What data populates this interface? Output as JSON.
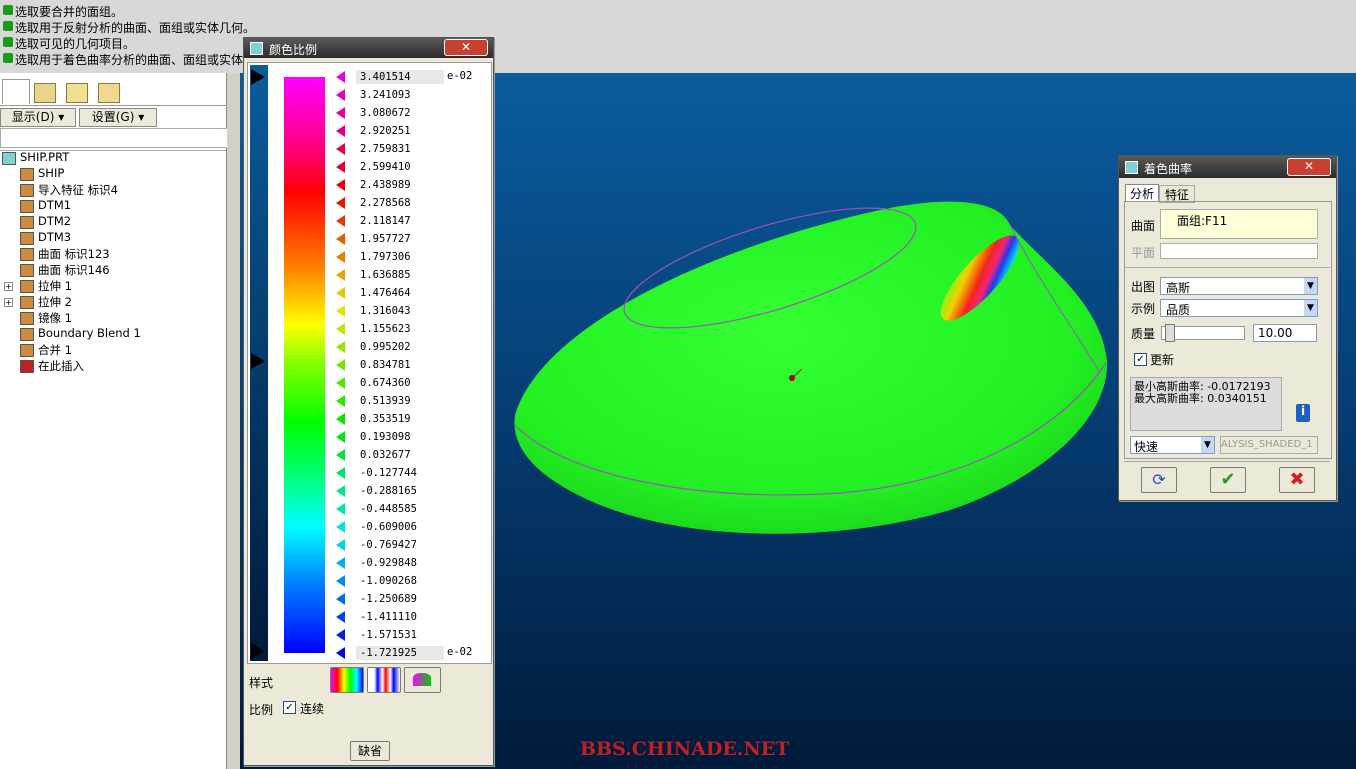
{
  "messages": [
    "选取要合并的面组。",
    "选取用于反射分析的曲面、面组或实体几何。",
    "选取可见的几何项目。",
    "选取用于着色曲率分析的曲面、面组或实体几何。"
  ],
  "model_tree": {
    "buttons": [
      "显示(D)",
      "设置(G)"
    ],
    "items": [
      "SHIP.PRT",
      "SHIP",
      "导入特征 标识4",
      "DTM1",
      "DTM2",
      "DTM3",
      "曲面 标识123",
      "曲面 标识146",
      "拉伸 1",
      "拉伸 2",
      "镜像 1",
      "Boundary Blend 1",
      "合并 1",
      "在此插入"
    ]
  },
  "color_scale_dialog": {
    "title": "颜色比例",
    "values": [
      "3.401514",
      "3.241093",
      "3.080672",
      "2.920251",
      "2.759831",
      "2.599410",
      "2.438989",
      "2.278568",
      "2.118147",
      "1.957727",
      "1.797306",
      "1.636885",
      "1.476464",
      "1.316043",
      "1.155623",
      "0.995202",
      "0.834781",
      "0.674360",
      "0.513939",
      "0.353519",
      "0.193098",
      "0.032677",
      "-0.127744",
      "-0.288165",
      "-0.448585",
      "-0.609006",
      "-0.769427",
      "-0.929848",
      "-1.090268",
      "-1.250689",
      "-1.411110",
      "-1.571531",
      "-1.721925"
    ],
    "exponent_top": "e-02",
    "exponent_bottom": "e-02",
    "style_label": "样式",
    "scale_label": "比例",
    "continuous_checkbox": "连续",
    "default_button": "缺省"
  },
  "shade_curvature_dialog": {
    "title": "着色曲率",
    "tabs": [
      "分析",
      "特征"
    ],
    "surface_label": "曲面",
    "surface_value": "面组:F11",
    "plane_label": "平面",
    "output_label": "出图",
    "output_value": "高斯",
    "display_label": "示例",
    "display_value": "品质",
    "quality_label": "质量",
    "quality_value": "10.00",
    "update_checkbox": "更新",
    "results": [
      "最小高斯曲率: -0.0172193",
      "最大高斯曲率: 0.0340151"
    ],
    "mode_value": "快速",
    "name_value": "ALYSIS_SHADED_1"
  },
  "watermark": "BBS.CHINADE.NET"
}
